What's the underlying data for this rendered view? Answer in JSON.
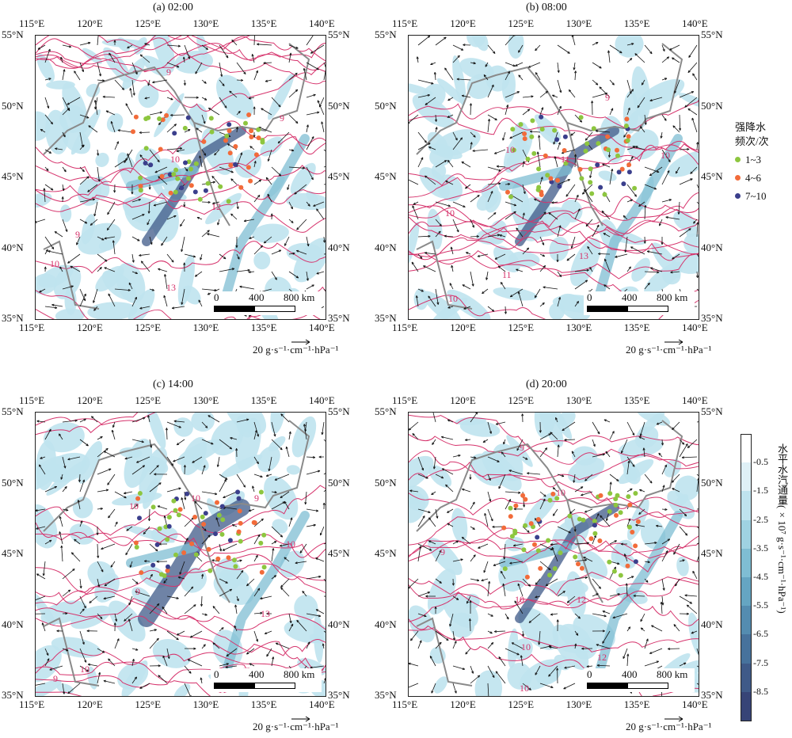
{
  "panels": [
    {
      "title": "(a) 02:00"
    },
    {
      "title": "(b) 08:00"
    },
    {
      "title": "(c) 14:00"
    },
    {
      "title": "(d) 20:00"
    }
  ],
  "lon_ticks": [
    "115°E",
    "120°E",
    "125°E",
    "130°E",
    "135°E",
    "140°E"
  ],
  "lat_ticks": [
    "55°N",
    "50°N",
    "45°N",
    "40°N",
    "35°N"
  ],
  "scale_bar": {
    "zero": "0",
    "mid": "400",
    "end": "800 km"
  },
  "vector_ref": {
    "label": "20 g·s⁻¹·cm⁻¹·hPa⁻¹"
  },
  "contour_labels": {
    "a": [
      "9",
      "9",
      "10",
      "9",
      "12",
      "10",
      "13"
    ],
    "b": [
      "9",
      "10",
      "10",
      "10",
      "11",
      "13",
      "11",
      "10"
    ],
    "c": [
      "10",
      "10",
      "9",
      "9",
      "10",
      "10",
      "9",
      "12",
      "11",
      "13"
    ],
    "d": [
      "9",
      "10",
      "10",
      "12",
      "9",
      "10",
      "12",
      "11",
      "10"
    ]
  },
  "legend": {
    "title_line1": "强降水",
    "title_line2": "频次/次",
    "items": [
      {
        "label": "1~3",
        "color": "#8dc63f"
      },
      {
        "label": "4~6",
        "color": "#f26b3a"
      },
      {
        "label": "7~10",
        "color": "#3b3f8c"
      }
    ]
  },
  "colorbar": {
    "title": "水平水汽通量(×10⁷ g·s⁻¹·cm⁻¹·hPa⁻¹)",
    "labels": [
      "-0.5",
      "-1.5",
      "-2.5",
      "-3.5",
      "-4.5",
      "-5.5",
      "-6.5",
      "-7.5",
      "-8.5"
    ],
    "colors": [
      "#ffffff",
      "#dff0f6",
      "#bfe3ee",
      "#9fd2e2",
      "#7fbdd3",
      "#65a5c2",
      "#548cb0",
      "#47729c",
      "#3f5a88",
      "#374477"
    ]
  },
  "map_colors": {
    "flux_light": "#bfe3ee",
    "flux_mid": "#7fbdd3",
    "flux_dark": "#3f5a88",
    "contour": "#d6336c",
    "border": "#8a8a8a",
    "arrow": "#111111"
  }
}
